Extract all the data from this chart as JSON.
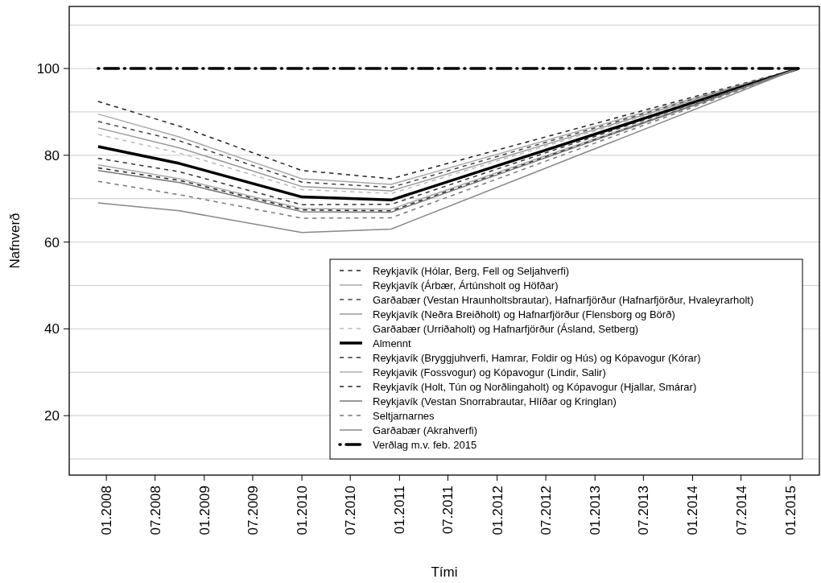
{
  "chart_data": {
    "type": "line",
    "xlabel": "Tími",
    "ylabel": "Nafnverð",
    "x": [
      "2007-12",
      "2008-10",
      "2010-01",
      "2010-12",
      "2015-02"
    ],
    "xlim": [
      "2007-08-15",
      "2015-04-20"
    ],
    "xticks": [
      {
        "value": "2008-01",
        "label": "01.2008"
      },
      {
        "value": "2008-07",
        "label": "07.2008"
      },
      {
        "value": "2009-01",
        "label": "01.2009"
      },
      {
        "value": "2009-07",
        "label": "07.2009"
      },
      {
        "value": "2010-01",
        "label": "01.2010"
      },
      {
        "value": "2010-07",
        "label": "07.2010"
      },
      {
        "value": "2011-01",
        "label": "01.2011"
      },
      {
        "value": "2011-07",
        "label": "07.2011"
      },
      {
        "value": "2012-01",
        "label": "01.2012"
      },
      {
        "value": "2012-07",
        "label": "07.2012"
      },
      {
        "value": "2013-01",
        "label": "01.2013"
      },
      {
        "value": "2013-07",
        "label": "07.2013"
      },
      {
        "value": "2014-01",
        "label": "01.2014"
      },
      {
        "value": "2014-07",
        "label": "07.2014"
      },
      {
        "value": "2015-01",
        "label": "01.2015"
      }
    ],
    "ylim": [
      6.3,
      114.3
    ],
    "yticks": [
      {
        "value": 10,
        "label": null
      },
      20,
      {
        "value": 30,
        "label": null
      },
      40,
      {
        "value": 50,
        "label": null
      },
      60,
      {
        "value": 70,
        "label": null
      },
      80,
      {
        "value": 90,
        "label": null
      },
      100,
      {
        "value": 110,
        "label": null
      }
    ],
    "grid": "y",
    "legend": "bottom right",
    "series": [
      {
        "name": "Reykjavík (Hólar, Berg, Fell og Seljahverfi)",
        "color": "#222222",
        "line_style": "dashed",
        "values": [
          92.4,
          86.7,
          76.5,
          74.6,
          100
        ]
      },
      {
        "name": "Reykjavík (Árbær, Ártúnsholt og Höfðar)",
        "color": "#aaaaaa",
        "line_style": "solid",
        "values": [
          89.5,
          84.2,
          74.6,
          73.3,
          100
        ]
      },
      {
        "name": "Garðabær (Vestan Hraunholtsbrautar), Hafnarfjörður (Hafnarfjörður, Hvaleyrarholt)",
        "color": "#444444",
        "line_style": "dashed",
        "values": [
          87.8,
          83.3,
          73.8,
          72.6,
          100
        ]
      },
      {
        "name": "Reykjavík (Neðra Breiðholt) og Hafnarfjörður (Flensborg og Börð)",
        "color": "#999999",
        "line_style": "solid",
        "values": [
          86.3,
          81.7,
          72.8,
          71.8,
          100
        ]
      },
      {
        "name": "Garðabær (Urriðaholt) og Hafnarfjörður (Ásland, Setberg)",
        "color": "#bbbbbb",
        "line_style": "dashed",
        "values": [
          84.8,
          80.5,
          72.1,
          71.2,
          100
        ]
      },
      {
        "name": "Almennt",
        "color": "#000000",
        "line_style": "solid",
        "values": [
          82.0,
          78.1,
          70.4,
          69.7,
          100
        ]
      },
      {
        "name": "Reykjavík (Bryggjuhverfi, Hamrar, Foldir og Hús) og Kópavogur (Kórar)",
        "color": "#333333",
        "line_style": "dashed",
        "values": [
          79.3,
          76.2,
          68.6,
          68.7,
          100
        ]
      },
      {
        "name": "Reykjavik (Fossvogur) og Kópavogur (Lindir, Salir)",
        "color": "#aaaaaa",
        "line_style": "solid",
        "values": [
          77.8,
          74.6,
          67.7,
          67.6,
          100
        ]
      },
      {
        "name": "Reykjavík (Holt, Tún og Norðlingaholt) og Kópavogur (Hjallar, Smárar)",
        "color": "#222222",
        "line_style": "dashed",
        "values": [
          77.1,
          74.2,
          67.4,
          67.2,
          100
        ]
      },
      {
        "name": "Reykjavík (Vestan Snorrabrautar, Hlíðar og Kringlan)",
        "color": "#777777",
        "line_style": "solid",
        "values": [
          76.5,
          73.7,
          67.0,
          66.9,
          100
        ]
      },
      {
        "name": "Seltjarnarnes",
        "color": "#777777",
        "line_style": "dashed",
        "values": [
          74.0,
          70.9,
          65.5,
          65.6,
          100
        ]
      },
      {
        "name": "Garðabær (Akrahverfi)",
        "color": "#888888",
        "line_style": "solid",
        "values": [
          69.0,
          67.2,
          62.2,
          63.0,
          100
        ]
      },
      {
        "name": "Verðlag m.v. feb. 2015",
        "color": "#000000",
        "line_style": "dashdot",
        "values": [
          100,
          100,
          100,
          100,
          100
        ]
      }
    ]
  }
}
